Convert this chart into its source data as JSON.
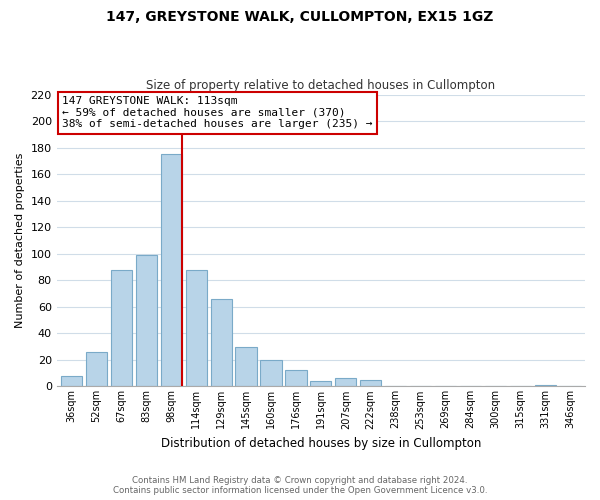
{
  "title": "147, GREYSTONE WALK, CULLOMPTON, EX15 1GZ",
  "subtitle": "Size of property relative to detached houses in Cullompton",
  "xlabel": "Distribution of detached houses by size in Cullompton",
  "ylabel": "Number of detached properties",
  "bar_labels": [
    "36sqm",
    "52sqm",
    "67sqm",
    "83sqm",
    "98sqm",
    "114sqm",
    "129sqm",
    "145sqm",
    "160sqm",
    "176sqm",
    "191sqm",
    "207sqm",
    "222sqm",
    "238sqm",
    "253sqm",
    "269sqm",
    "284sqm",
    "300sqm",
    "315sqm",
    "331sqm",
    "346sqm"
  ],
  "bar_values": [
    8,
    26,
    88,
    99,
    175,
    88,
    66,
    30,
    20,
    12,
    4,
    6,
    5,
    0,
    0,
    0,
    0,
    0,
    0,
    1,
    0
  ],
  "bar_color": "#b8d4e8",
  "bar_edge_color": "#7aaac8",
  "grid_color": "#d0dde8",
  "background_color": "#ffffff",
  "property_line_index": 4,
  "property_line_color": "#cc0000",
  "annotation_line1": "147 GREYSTONE WALK: 113sqm",
  "annotation_line2": "← 59% of detached houses are smaller (370)",
  "annotation_line3": "38% of semi-detached houses are larger (235) →",
  "annotation_box_color": "#ffffff",
  "annotation_box_edge": "#cc0000",
  "ylim": [
    0,
    220
  ],
  "yticks": [
    0,
    20,
    40,
    60,
    80,
    100,
    120,
    140,
    160,
    180,
    200,
    220
  ],
  "footer_line1": "Contains HM Land Registry data © Crown copyright and database right 2024.",
  "footer_line2": "Contains public sector information licensed under the Open Government Licence v3.0."
}
